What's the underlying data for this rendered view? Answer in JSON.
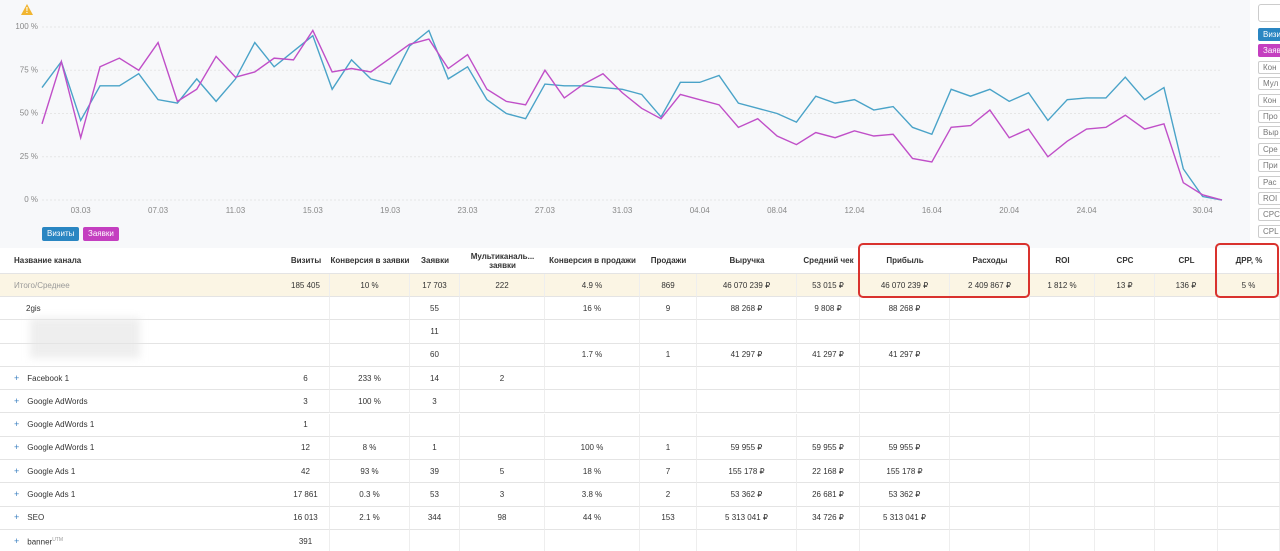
{
  "chart": {
    "type": "line",
    "yticks": [
      {
        "value": 0,
        "label": "0 %"
      },
      {
        "value": 25,
        "label": "25 %"
      },
      {
        "value": 50,
        "label": "50 %"
      },
      {
        "value": 75,
        "label": "75 %"
      },
      {
        "value": 100,
        "label": "100 %"
      }
    ],
    "ylim": [
      0,
      100
    ],
    "grid": true,
    "categories": [
      null,
      null,
      "03.03",
      null,
      null,
      null,
      "07.03",
      null,
      null,
      null,
      "11.03",
      null,
      null,
      null,
      "15.03",
      null,
      null,
      null,
      "19.03",
      null,
      null,
      null,
      "23.03",
      null,
      null,
      null,
      "27.03",
      null,
      null,
      null,
      "31.03",
      null,
      null,
      null,
      "04.04",
      null,
      null,
      null,
      "08.04",
      null,
      null,
      null,
      "12.04",
      null,
      null,
      null,
      "16.04",
      null,
      null,
      null,
      "20.04",
      null,
      null,
      null,
      "24.04",
      null,
      null,
      null,
      null,
      null,
      "30.04",
      null
    ],
    "series": [
      {
        "name": "Визиты",
        "color": "#4aa3c8",
        "chip": "#2a86c2",
        "values": [
          65,
          80,
          46,
          66,
          66,
          73,
          58,
          56,
          70,
          57,
          70,
          91,
          77,
          86,
          95,
          64,
          81,
          70,
          67,
          89,
          98,
          70,
          77,
          58,
          50,
          47,
          67,
          66,
          66,
          65,
          64,
          61,
          48,
          68,
          68,
          72,
          56,
          53,
          50,
          45,
          60,
          56,
          58,
          52,
          54,
          42,
          38,
          64,
          60,
          64,
          57,
          62,
          46,
          58,
          59,
          59,
          71,
          58,
          65,
          18,
          2,
          0
        ]
      },
      {
        "name": "Заявки",
        "color": "#c04fc8",
        "chip": "#c43fc0",
        "values": [
          44,
          80,
          36,
          77,
          82,
          75,
          91,
          57,
          64,
          83,
          71,
          74,
          82,
          81,
          98,
          74,
          76,
          74,
          82,
          90,
          93,
          76,
          84,
          64,
          57,
          55,
          75,
          59,
          67,
          73,
          62,
          53,
          47,
          61,
          58,
          55,
          42,
          47,
          37,
          32,
          39,
          36,
          40,
          37,
          38,
          24,
          22,
          42,
          43,
          52,
          36,
          41,
          25,
          34,
          41,
          42,
          49,
          41,
          44,
          10,
          3,
          0
        ]
      }
    ],
    "side_buttons": [
      "Визи",
      "Заяв",
      "Кон",
      "Мул",
      "Кон",
      "Про",
      "Выр",
      "Сре",
      "При",
      "Рас",
      "ROI",
      "CPC",
      "CPL"
    ]
  },
  "table": {
    "header": [
      "Название канала",
      "Визиты",
      "Конверсия в заявки",
      "Заявки",
      "Мультиканаль... заявки",
      "Конверсия в продажи",
      "Продажи",
      "Выручка",
      "Средний чек",
      "Прибыль",
      "Расходы",
      "ROI",
      "CPC",
      "CPL",
      "ДРР, %"
    ],
    "total": [
      "Итого/Среднее",
      "185 405",
      "10 %",
      "17 703",
      "222",
      "4.9 %",
      "869",
      "46 070 239 ₽",
      "53 015 ₽",
      "46 070 239 ₽",
      "2 409 867 ₽",
      "1 812 %",
      "13 ₽",
      "136 ₽",
      "5 %"
    ],
    "rows": [
      {
        "name": "2gis",
        "cells": [
          null,
          null,
          "55",
          null,
          "16 %",
          "9",
          "88 268 ₽",
          "9 808 ₽",
          "88 268 ₽",
          null,
          null,
          null,
          null,
          null
        ]
      },
      {
        "name": null,
        "cells": [
          null,
          null,
          "11",
          null,
          null,
          null,
          null,
          null,
          null,
          null,
          null,
          null,
          null,
          null
        ]
      },
      {
        "name": null,
        "cells": [
          null,
          null,
          "60",
          null,
          "1.7 %",
          "1",
          "41 297 ₽",
          "41 297 ₽",
          "41 297 ₽",
          null,
          null,
          null,
          null,
          null
        ]
      },
      {
        "name": "Facebook 1",
        "cells": [
          "6",
          "233 %",
          "14",
          "2",
          null,
          null,
          null,
          null,
          null,
          null,
          null,
          null,
          null,
          null
        ]
      },
      {
        "name": "Google AdWords",
        "cells": [
          "3",
          "100 %",
          "3",
          null,
          null,
          null,
          null,
          null,
          null,
          null,
          null,
          null,
          null,
          null
        ]
      },
      {
        "name": "Google AdWords 1",
        "cells": [
          "1",
          null,
          null,
          null,
          null,
          null,
          null,
          null,
          null,
          null,
          null,
          null,
          null,
          null
        ]
      },
      {
        "name": "Google AdWords 1",
        "cells": [
          "12",
          "8 %",
          "1",
          null,
          "100 %",
          "1",
          "59 955 ₽",
          "59 955 ₽",
          "59 955 ₽",
          null,
          null,
          null,
          null,
          null
        ]
      },
      {
        "name": "Google Ads 1",
        "cells": [
          "42",
          "93 %",
          "39",
          "5",
          "18 %",
          "7",
          "155 178 ₽",
          "22 168 ₽",
          "155 178 ₽",
          null,
          null,
          null,
          null,
          null
        ]
      },
      {
        "name": "Google Ads 1",
        "cells": [
          "17 861",
          "0.3 %",
          "53",
          "3",
          "3.8 %",
          "2",
          "53 362 ₽",
          "26 681 ₽",
          "53 362 ₽",
          null,
          null,
          null,
          null,
          null
        ]
      },
      {
        "name": "SEO",
        "cells": [
          "16 013",
          "2.1 %",
          "344",
          "98",
          "44 %",
          "153",
          "5 313 041 ₽",
          "34 726 ₽",
          "5 313 041 ₽",
          null,
          null,
          null,
          null,
          null
        ]
      },
      {
        "name": "banner",
        "sup": "UTM",
        "cells": [
          "391",
          null,
          null,
          null,
          null,
          null,
          null,
          null,
          null,
          null,
          null,
          null,
          null,
          null
        ]
      }
    ]
  }
}
